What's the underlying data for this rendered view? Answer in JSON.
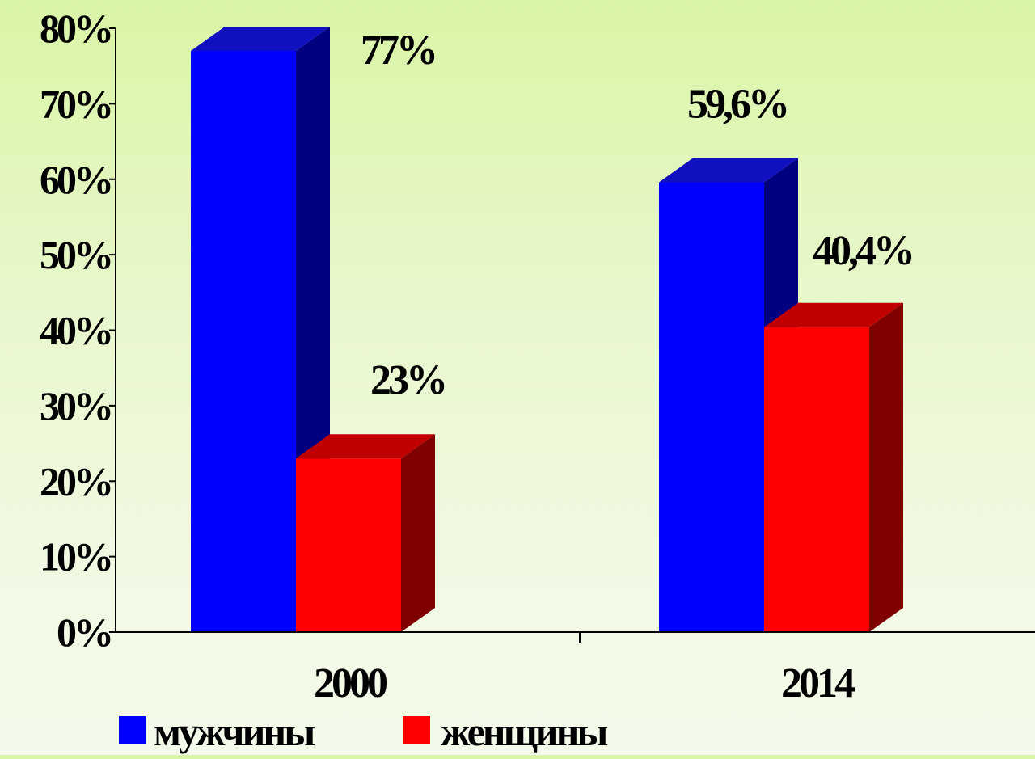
{
  "chart_data": {
    "type": "bar",
    "categories": [
      "2000",
      "2014"
    ],
    "series": [
      {
        "name": "мужчины",
        "values": [
          77,
          59.6
        ],
        "labels": [
          "77%",
          "59,6%"
        ],
        "color": "#0000ff",
        "side_color": "#000080",
        "top_color": "#1010c0"
      },
      {
        "name": "женщины",
        "values": [
          23,
          40.4
        ],
        "labels": [
          "23%",
          "40,4%"
        ],
        "color": "#ff0000",
        "side_color": "#800000",
        "top_color": "#c00000"
      }
    ],
    "y_ticks": [
      "0%",
      "10%",
      "20%",
      "30%",
      "40%",
      "50%",
      "60%",
      "70%",
      "80%"
    ],
    "ylim": [
      0,
      80
    ],
    "legend_position": "bottom-left",
    "grid": false
  }
}
